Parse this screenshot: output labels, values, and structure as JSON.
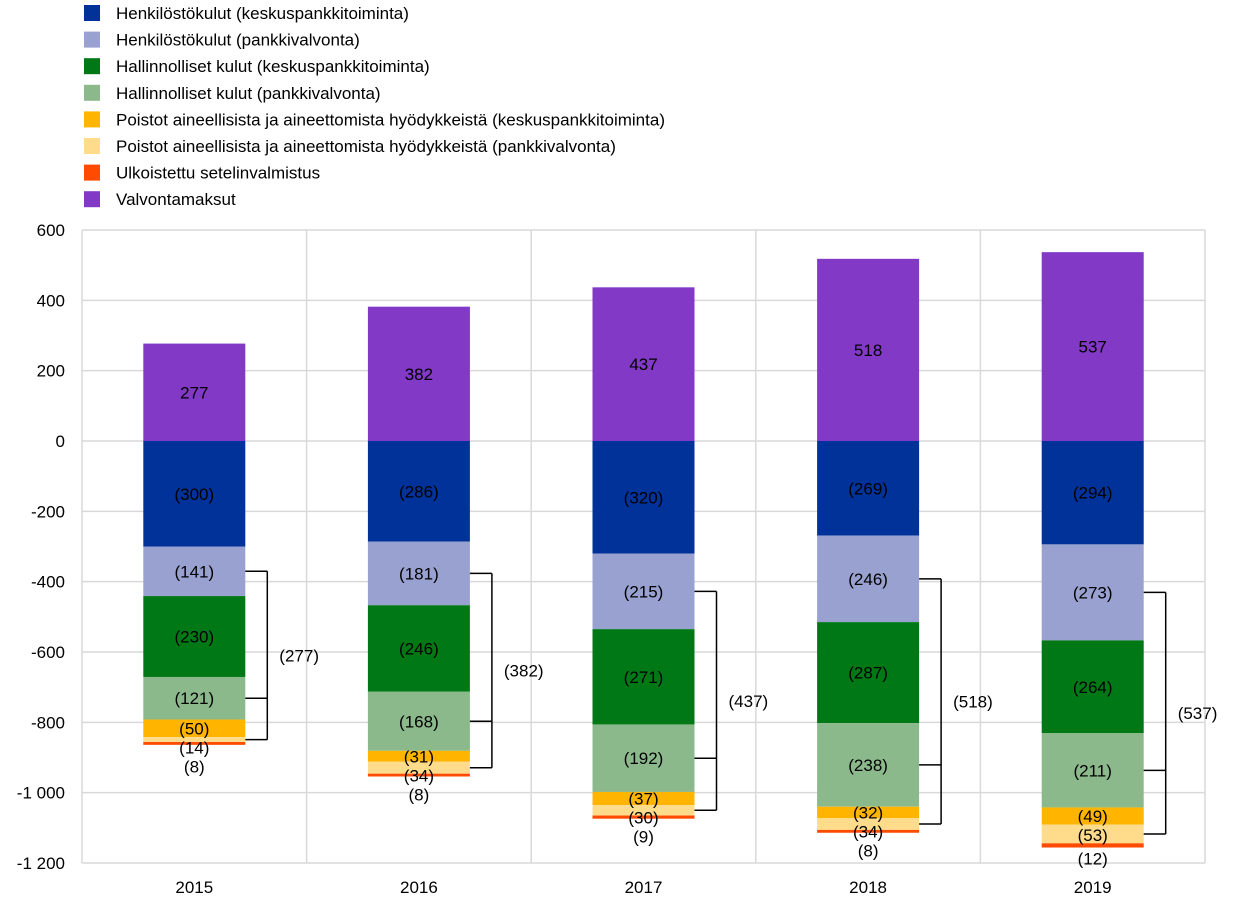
{
  "chart_data": {
    "type": "bar",
    "stacked": true,
    "categories": [
      "2015",
      "2016",
      "2017",
      "2018",
      "2019"
    ],
    "ylim": [
      -1200,
      600
    ],
    "yticks": [
      600,
      400,
      200,
      0,
      -200,
      -400,
      -600,
      -800,
      -1000,
      -1200
    ],
    "ytick_labels": [
      "600",
      "400",
      "200",
      "0",
      "-200",
      "-400",
      "-600",
      "-800",
      "-1 000",
      "-1 200"
    ],
    "grid": true,
    "legend_position": "top-left",
    "series": [
      {
        "name": "Henkilöstökulut (keskuspankkitoiminta)",
        "color": "#003299",
        "values": [
          -300,
          -286,
          -320,
          -269,
          -294
        ]
      },
      {
        "name": "Henkilöstökulut (pankkivalvonta)",
        "color": "#98A1D0",
        "values": [
          -141,
          -181,
          -215,
          -246,
          -273
        ]
      },
      {
        "name": "Hallinnolliset kulut (keskuspankkitoiminta)",
        "color": "#007816",
        "values": [
          -230,
          -246,
          -271,
          -287,
          -264
        ]
      },
      {
        "name": "Hallinnolliset kulut (pankkivalvonta)",
        "color": "#8BB98C",
        "values": [
          -121,
          -168,
          -192,
          -238,
          -211
        ]
      },
      {
        "name": "Poistot aineellisista ja aineettomista hyödykkeistä (keskuspankkitoiminta)",
        "color": "#FFB400",
        "values": [
          -50,
          -31,
          -37,
          -32,
          -49
        ]
      },
      {
        "name": "Poistot aineellisista ja aineettomista hyödykkeistä (pankkivalvonta)",
        "color": "#FFDC8C",
        "values": [
          -14,
          -34,
          -30,
          -34,
          -53
        ]
      },
      {
        "name": "Ulkoistettu setelinvalmistus",
        "color": "#FF4B00",
        "values": [
          -8,
          -8,
          -9,
          -8,
          -12
        ]
      },
      {
        "name": "Valvontamaksut",
        "color": "#8139C6",
        "values": [
          277,
          382,
          437,
          518,
          537
        ]
      }
    ],
    "data_labels": [
      [
        "(300)",
        "(141)",
        "(230)",
        "(121)",
        "(50)",
        "(14)",
        "(8)",
        "277"
      ],
      [
        "(286)",
        "(181)",
        "(246)",
        "(168)",
        "(31)",
        "(34)",
        "(8)",
        "382"
      ],
      [
        "(320)",
        "(215)",
        "(271)",
        "(192)",
        "(37)",
        "(30)",
        "(9)",
        "437"
      ],
      [
        "(269)",
        "(246)",
        "(287)",
        "(238)",
        "(32)",
        "(34)",
        "(8)",
        "518"
      ],
      [
        "(294)",
        "(273)",
        "(264)",
        "(211)",
        "(49)",
        "(53)",
        "(12)",
        "537"
      ]
    ],
    "bracket_labels": [
      "(277)",
      "(382)",
      "(437)",
      "(518)",
      "(537)"
    ]
  }
}
